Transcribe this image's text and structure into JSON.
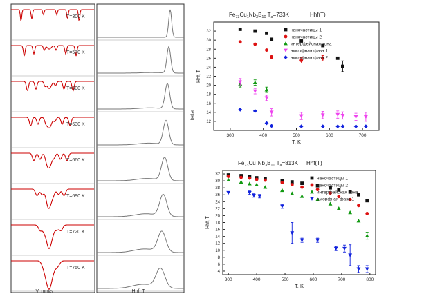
{
  "mossbauer": {
    "temperatures": [
      "T=300 K",
      "T=570 K",
      "T=600 K",
      "T=630 K",
      "T=660 K",
      "T=690 K",
      "T=720 K",
      "T=750 K"
    ],
    "xlabel": "V, mm/s",
    "p_xlabel": "Hhf, T",
    "p_ylabel": "P(H)",
    "colors": {
      "fit": "#cc0000",
      "data": "#444444",
      "hist": "#777777"
    }
  },
  "chart_data": [
    {
      "type": "scatter",
      "title": "Fe73Cu1Nb3B10 Ta=733K     Hhf(T)",
      "title_parts": {
        "main": "Fe",
        "s1": "73",
        "t1": "Cu",
        "s2": "1",
        "t2": "Nb",
        "s3": "3",
        "t3": "B",
        "s4": "10",
        "t4": " T",
        "s5": "a",
        "t5": "=733K",
        "suffix": "Hhf(T)"
      },
      "xlabel": "T, K",
      "ylabel": "Hhf, T",
      "xlim": [
        250,
        750
      ],
      "ylim": [
        10,
        34
      ],
      "xticks": [
        300,
        400,
        500,
        600,
        700
      ],
      "yticks": [
        12,
        14,
        16,
        18,
        20,
        22,
        24,
        26,
        28,
        30,
        32
      ],
      "series": [
        {
          "name": "наночастицы 1",
          "color": "#111111",
          "marker": "square",
          "x": [
            330,
            375,
            410,
            425,
            515,
            580,
            625,
            640
          ],
          "y": [
            32.4,
            32.0,
            31.5,
            30.2,
            29.8,
            28.8,
            26.0,
            24.2
          ],
          "err": [
            0,
            0,
            0,
            0,
            0,
            0,
            0,
            1.2
          ]
        },
        {
          "name": "наночастицы 2",
          "color": "#dd1111",
          "marker": "circle",
          "x": [
            330,
            375,
            410,
            425,
            515,
            580
          ],
          "y": [
            29.6,
            29.1,
            27.8,
            26.3,
            25.5,
            26.0
          ],
          "err": [
            0,
            0,
            0,
            0.4,
            0.6,
            0.6
          ]
        },
        {
          "name": "интерфейсная зона",
          "color": "#119911",
          "marker": "triangle",
          "x": [
            330,
            375,
            410
          ],
          "y": [
            20.3,
            20.6,
            19.0
          ],
          "err": [
            0.7,
            0.6,
            0.6
          ]
        },
        {
          "name": "аморфная фаза 1",
          "color": "#ee44ee",
          "marker": "triangle-down",
          "x": [
            330,
            375,
            410,
            425,
            515,
            580,
            625,
            640,
            680,
            710
          ],
          "y": [
            20.7,
            18.7,
            17.2,
            14.0,
            13.2,
            13.4,
            13.5,
            13.3,
            13.0,
            13.0
          ],
          "err": [
            0.8,
            0.6,
            0.6,
            0.8,
            0.8,
            0.8,
            0.8,
            0.8,
            0.8,
            1.0
          ]
        },
        {
          "name": "аморфная фаза 2",
          "color": "#1122dd",
          "marker": "diamond",
          "x": [
            330,
            375,
            410,
            425,
            515,
            580,
            625,
            640,
            680,
            710
          ],
          "y": [
            14.6,
            14.3,
            11.6,
            11.0,
            10.9,
            10.9,
            10.9,
            10.9,
            10.9,
            10.9
          ],
          "err": [
            0,
            0,
            0,
            0,
            0,
            0,
            0,
            0,
            0,
            0
          ]
        }
      ]
    },
    {
      "type": "scatter",
      "title": "Fe73Cu1Nb3B10 Ta=813K     Hhf(T)",
      "title_parts": {
        "main": "Fe",
        "s1": "73",
        "t1": "Cu",
        "s2": "1",
        "t2": "Nb",
        "s3": "3",
        "t3": "B",
        "s4": "10",
        "t4": " T",
        "s5": "a",
        "t5": "=813K",
        "suffix": "Hhf(T)"
      },
      "xlabel": "T, K",
      "ylabel": "Hhf, T",
      "xlim": [
        280,
        820
      ],
      "ylim": [
        3,
        33
      ],
      "xticks": [
        300,
        400,
        500,
        600,
        700,
        800
      ],
      "yticks": [
        4,
        6,
        8,
        10,
        12,
        14,
        16,
        18,
        20,
        22,
        24,
        26,
        28,
        30,
        32
      ],
      "series": [
        {
          "name": "наночастицы 1",
          "color": "#111111",
          "marker": "square",
          "x": [
            300,
            345,
            375,
            400,
            430,
            490,
            525,
            560,
            615,
            660,
            690,
            730,
            760,
            790
          ],
          "y": [
            31.7,
            31.5,
            31.2,
            30.9,
            30.7,
            30.0,
            29.7,
            29.3,
            28.6,
            28.0,
            27.4,
            26.8,
            26.0,
            24.3
          ],
          "err": [
            0,
            0,
            0,
            0,
            0,
            0,
            0,
            0,
            0,
            0,
            0,
            0,
            0,
            0
          ]
        },
        {
          "name": "наночастицы 2",
          "color": "#dd1111",
          "marker": "circle",
          "x": [
            300,
            345,
            375,
            400,
            430,
            490,
            525,
            560,
            615,
            660,
            690,
            730,
            760,
            790
          ],
          "y": [
            31.3,
            31.0,
            30.8,
            30.4,
            30.2,
            29.5,
            28.9,
            28.2,
            27.5,
            26.5,
            25.5,
            24.6,
            22.9,
            20.6
          ],
          "err": [
            0,
            0,
            0,
            0,
            0,
            0,
            0,
            0,
            0,
            0,
            0,
            0,
            0,
            0
          ]
        },
        {
          "name": "интерфейсная зона",
          "color": "#119911",
          "marker": "triangle",
          "x": [
            300,
            345,
            375,
            400,
            430,
            490,
            525,
            560,
            615,
            660,
            690,
            730,
            760,
            790
          ],
          "y": [
            30.3,
            29.7,
            29.2,
            28.9,
            28.2,
            27.3,
            26.4,
            25.6,
            24.6,
            23.4,
            22.1,
            20.9,
            18.5,
            14.2
          ],
          "err": [
            0,
            0,
            0,
            0,
            0,
            0,
            0,
            0,
            0,
            0,
            0,
            0,
            0,
            1.0
          ]
        },
        {
          "name": "аморфная фаза 1",
          "color": "#1122dd",
          "marker": "triangle-down",
          "x": [
            300,
            375,
            390,
            410,
            490,
            525,
            560,
            615,
            680,
            710,
            730,
            760,
            790
          ],
          "y": [
            26.6,
            26.6,
            25.8,
            25.6,
            22.7,
            15.0,
            12.9,
            12.9,
            10.5,
            10.5,
            8.6,
            4.6,
            4.6
          ],
          "err": [
            0,
            0.5,
            0.5,
            0.5,
            0.6,
            3.0,
            0.6,
            0.6,
            0.6,
            1.0,
            3.0,
            1.0,
            1.0
          ]
        }
      ]
    }
  ]
}
